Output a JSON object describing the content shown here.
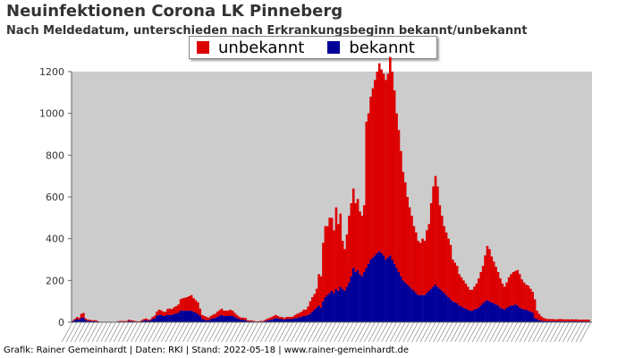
{
  "title": "Neuinfektionen Corona LK Pinneberg",
  "subtitle": "Nach Meldedatum, unterschieden nach Erkrankungsbeginn bekannt/unbekannt",
  "source": "Grafik: Rainer Gemeinhardt | Daten: RKI | Stand: 2022-05-18 | www.rainer-gemeinhardt.de",
  "legend": [
    {
      "name": "unbekannt",
      "color": "#dd0000"
    },
    {
      "name": "bekannt",
      "color": "#000099"
    }
  ],
  "chart_data": {
    "type": "bar",
    "stacked": true,
    "title": "Neuinfektionen Corona LK Pinneberg",
    "subtitle": "Nach Meldedatum, unterschieden nach Erkrankungsbeginn bekannt/unbekannt",
    "ylim": [
      0,
      1200
    ],
    "yticks": [
      0,
      200,
      400,
      600,
      800,
      1000,
      1200
    ],
    "grid": false,
    "legend_position": "top",
    "background": "#cccccc",
    "x_tick_labels_legible": false,
    "series": [
      {
        "name": "unbekannt",
        "color": "#dd0000",
        "values": [
          3,
          6,
          10,
          9,
          20,
          22,
          8,
          5,
          6,
          4,
          5,
          4,
          2,
          0,
          0,
          0,
          0,
          0,
          0,
          0,
          0,
          2,
          3,
          3,
          3,
          3,
          6,
          5,
          4,
          3,
          2,
          2,
          5,
          7,
          8,
          5,
          6,
          10,
          14,
          20,
          25,
          22,
          20,
          20,
          28,
          30,
          28,
          32,
          35,
          40,
          55,
          60,
          62,
          65,
          70,
          75,
          65,
          60,
          55,
          35,
          20,
          18,
          15,
          12,
          15,
          18,
          20,
          25,
          28,
          30,
          25,
          25,
          26,
          28,
          25,
          20,
          15,
          12,
          10,
          10,
          10,
          5,
          4,
          4,
          3,
          2,
          2,
          3,
          3,
          5,
          8,
          10,
          12,
          15,
          15,
          12,
          10,
          10,
          8,
          10,
          10,
          10,
          12,
          15,
          20,
          20,
          25,
          30,
          30,
          40,
          60,
          70,
          75,
          90,
          150,
          150,
          280,
          340,
          330,
          360,
          350,
          300,
          390,
          320,
          350,
          230,
          200,
          250,
          320,
          350,
          380,
          330,
          340,
          300,
          290,
          320,
          700,
          720,
          780,
          810,
          840,
          870,
          900,
          880,
          870,
          860,
          880,
          950,
          900,
          830,
          740,
          680,
          600,
          520,
          480,
          420,
          380,
          350,
          310,
          290,
          260,
          250,
          270,
          260,
          300,
          320,
          410,
          480,
          520,
          480,
          400,
          360,
          320,
          300,
          280,
          260,
          200,
          190,
          180,
          150,
          140,
          130,
          120,
          110,
          100,
          100,
          110,
          120,
          140,
          160,
          180,
          220,
          260,
          250,
          220,
          200,
          180,
          160,
          140,
          120,
          110,
          120,
          140,
          150,
          160,
          160,
          170,
          160,
          140,
          130,
          120,
          120,
          110,
          100,
          90,
          40,
          30,
          20,
          15,
          12,
          10,
          10,
          10,
          10,
          8,
          10,
          10,
          10,
          8,
          10,
          8,
          10,
          8,
          10,
          8,
          8,
          8,
          8,
          8,
          8,
          8
        ]
      },
      {
        "name": "bekannt",
        "color": "#000099",
        "values": [
          5,
          10,
          15,
          12,
          20,
          22,
          10,
          7,
          6,
          5,
          5,
          4,
          2,
          0,
          0,
          0,
          0,
          0,
          0,
          0,
          0,
          3,
          3,
          3,
          3,
          3,
          6,
          5,
          4,
          3,
          2,
          2,
          5,
          8,
          10,
          7,
          8,
          15,
          18,
          30,
          35,
          35,
          30,
          30,
          36,
          35,
          35,
          40,
          42,
          45,
          55,
          55,
          55,
          55,
          55,
          55,
          50,
          45,
          40,
          30,
          15,
          12,
          10,
          10,
          15,
          18,
          20,
          25,
          30,
          35,
          30,
          30,
          30,
          32,
          30,
          25,
          20,
          15,
          12,
          12,
          10,
          5,
          4,
          4,
          3,
          2,
          2,
          3,
          3,
          5,
          8,
          10,
          12,
          15,
          20,
          18,
          15,
          15,
          12,
          15,
          15,
          15,
          15,
          20,
          20,
          25,
          25,
          30,
          30,
          35,
          40,
          50,
          60,
          70,
          80,
          70,
          100,
          120,
          130,
          140,
          150,
          140,
          160,
          150,
          170,
          160,
          150,
          170,
          190,
          220,
          260,
          240,
          250,
          230,
          220,
          240,
          260,
          280,
          300,
          310,
          320,
          330,
          340,
          330,
          320,
          300,
          310,
          320,
          300,
          280,
          260,
          240,
          220,
          200,
          190,
          180,
          170,
          160,
          150,
          140,
          130,
          130,
          130,
          130,
          140,
          150,
          160,
          170,
          180,
          170,
          160,
          150,
          140,
          130,
          120,
          110,
          100,
          95,
          90,
          80,
          75,
          70,
          65,
          60,
          55,
          55,
          60,
          65,
          70,
          80,
          90,
          100,
          105,
          100,
          95,
          90,
          85,
          80,
          70,
          65,
          60,
          70,
          75,
          80,
          80,
          85,
          80,
          70,
          65,
          60,
          60,
          55,
          50,
          45,
          20,
          15,
          10,
          8,
          6,
          5,
          5,
          5,
          5,
          4,
          5,
          5,
          5,
          4,
          5,
          4,
          5,
          4,
          5,
          4,
          4,
          4,
          4,
          4,
          4,
          4
        ]
      }
    ]
  }
}
